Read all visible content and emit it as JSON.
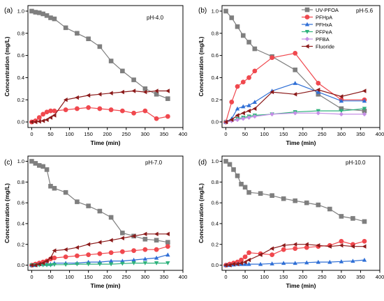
{
  "figure": {
    "legend_series": [
      "UV-PFOA",
      "PFHpA",
      "PFHxA",
      "PFPeA",
      "PFBA",
      "Fluoride"
    ]
  },
  "series_styles": {
    "UV-PFOA": {
      "color": "#7f7f7f",
      "marker": "square"
    },
    "PFHpA": {
      "color": "#f0484e",
      "marker": "circle"
    },
    "PFHxA": {
      "color": "#2f6fd6",
      "marker": "triangle-up"
    },
    "PFPeA": {
      "color": "#2fb27c",
      "marker": "triangle-down"
    },
    "PFBA": {
      "color": "#c58fe6",
      "marker": "diamond"
    },
    "Fluoride": {
      "color": "#8b1a1a",
      "marker": "triangle-left"
    }
  },
  "chart_data": [
    {
      "type": "line",
      "panel_label": "(a)",
      "annotation": "pH-4.0",
      "xlabel": "Time (min)",
      "ylabel": "Concentration (mg/L)",
      "xlim": [
        -10,
        400
      ],
      "ylim": [
        -0.05,
        1.05
      ],
      "xticks": [
        0,
        50,
        100,
        150,
        200,
        250,
        300,
        350,
        400
      ],
      "yticks": [
        0.0,
        0.2,
        0.4,
        0.6,
        0.8,
        1.0
      ],
      "yticklabels": [
        "0.0",
        "0.2",
        "0.4",
        "0.6",
        "0.8",
        "1.0"
      ],
      "legend": false,
      "series": [
        {
          "name": "UV-PFOA",
          "x": [
            0,
            10,
            20,
            30,
            40,
            50,
            60,
            90,
            120,
            150,
            180,
            210,
            240,
            270,
            300,
            330,
            360
          ],
          "y": [
            1.0,
            0.99,
            0.985,
            0.975,
            0.96,
            0.94,
            0.93,
            0.85,
            0.8,
            0.75,
            0.68,
            0.55,
            0.46,
            0.38,
            0.3,
            0.25,
            0.21
          ]
        },
        {
          "name": "PFHpA",
          "x": [
            0,
            10,
            20,
            30,
            40,
            50,
            60,
            90,
            120,
            150,
            180,
            210,
            240,
            270,
            300,
            330,
            360
          ],
          "y": [
            0.0,
            0.01,
            0.04,
            0.07,
            0.09,
            0.1,
            0.1,
            0.11,
            0.12,
            0.13,
            0.12,
            0.11,
            0.1,
            0.08,
            0.1,
            0.03,
            0.05
          ]
        },
        {
          "name": "Fluoride",
          "x": [
            0,
            10,
            20,
            30,
            40,
            50,
            60,
            90,
            120,
            150,
            180,
            210,
            240,
            270,
            300,
            330,
            360
          ],
          "y": [
            0.0,
            0.0,
            0.005,
            0.01,
            0.02,
            0.04,
            0.06,
            0.2,
            0.22,
            0.24,
            0.25,
            0.26,
            0.27,
            0.28,
            0.27,
            0.28,
            0.28
          ]
        }
      ]
    },
    {
      "type": "line",
      "panel_label": "(b)",
      "annotation": "pH-5.6",
      "xlabel": "Time (min)",
      "ylabel": "Concentration (mg/L)",
      "xlim": [
        -10,
        400
      ],
      "ylim": [
        -0.05,
        1.05
      ],
      "xticks": [
        0,
        50,
        100,
        150,
        200,
        250,
        300,
        350,
        400
      ],
      "yticks": [
        0.0,
        0.2,
        0.4,
        0.6,
        0.8,
        1.0
      ],
      "yticklabels": [
        "0.0",
        "0.2",
        "0.4",
        "0.6",
        "0.8",
        "1.0"
      ],
      "legend": true,
      "series": [
        {
          "name": "UV-PFOA",
          "x": [
            0,
            15,
            30,
            45,
            60,
            75,
            120,
            180,
            240,
            300,
            360
          ],
          "y": [
            1.0,
            0.94,
            0.86,
            0.78,
            0.72,
            0.66,
            0.59,
            0.47,
            0.25,
            0.12,
            0.1
          ]
        },
        {
          "name": "PFHpA",
          "x": [
            0,
            15,
            30,
            45,
            60,
            75,
            120,
            180,
            240,
            300,
            360
          ],
          "y": [
            0.0,
            0.18,
            0.32,
            0.36,
            0.4,
            0.46,
            0.58,
            0.62,
            0.35,
            0.2,
            0.2
          ]
        },
        {
          "name": "PFHxA",
          "x": [
            0,
            15,
            30,
            45,
            60,
            75,
            120,
            180,
            240,
            300,
            360
          ],
          "y": [
            0.0,
            0.03,
            0.12,
            0.14,
            0.15,
            0.18,
            0.28,
            0.35,
            0.27,
            0.19,
            0.19
          ]
        },
        {
          "name": "PFPeA",
          "x": [
            0,
            15,
            30,
            45,
            60,
            75,
            120,
            180,
            240,
            300,
            360
          ],
          "y": [
            0.0,
            0.01,
            0.03,
            0.04,
            0.05,
            0.06,
            0.07,
            0.09,
            0.1,
            0.1,
            0.12
          ]
        },
        {
          "name": "PFBA",
          "x": [
            0,
            15,
            30,
            45,
            60,
            75,
            120,
            180,
            240,
            300,
            360
          ],
          "y": [
            0.0,
            0.01,
            0.02,
            0.03,
            0.04,
            0.05,
            0.07,
            0.08,
            0.08,
            0.07,
            0.07
          ]
        },
        {
          "name": "Fluoride",
          "x": [
            0,
            15,
            30,
            45,
            60,
            75,
            120,
            180,
            240,
            300,
            360
          ],
          "y": [
            0.0,
            0.02,
            0.06,
            0.08,
            0.1,
            0.12,
            0.27,
            0.25,
            0.29,
            0.23,
            0.28
          ]
        }
      ]
    },
    {
      "type": "line",
      "panel_label": "(c)",
      "annotation": "pH-7.0",
      "xlabel": "Time (min)",
      "ylabel": "Concentration (mg/L)",
      "xlim": [
        -10,
        400
      ],
      "ylim": [
        -0.05,
        1.05
      ],
      "xticks": [
        0,
        50,
        100,
        150,
        200,
        250,
        300,
        350,
        400
      ],
      "yticks": [
        0.0,
        0.2,
        0.4,
        0.6,
        0.8,
        1.0
      ],
      "yticklabels": [
        "0.0",
        "0.2",
        "0.4",
        "0.6",
        "0.8",
        "1.0"
      ],
      "legend": false,
      "series": [
        {
          "name": "UV-PFOA",
          "x": [
            0,
            10,
            20,
            30,
            40,
            50,
            60,
            90,
            120,
            150,
            180,
            210,
            240,
            270,
            300,
            330,
            360
          ],
          "y": [
            1.0,
            0.98,
            0.96,
            0.95,
            0.92,
            0.76,
            0.74,
            0.7,
            0.61,
            0.57,
            0.52,
            0.46,
            0.31,
            0.28,
            0.25,
            0.24,
            0.22
          ]
        },
        {
          "name": "PFHpA",
          "x": [
            0,
            10,
            20,
            30,
            40,
            50,
            60,
            90,
            120,
            150,
            180,
            210,
            240,
            270,
            300,
            330,
            360
          ],
          "y": [
            0.0,
            0.01,
            0.02,
            0.03,
            0.04,
            0.06,
            0.07,
            0.08,
            0.09,
            0.1,
            0.11,
            0.12,
            0.13,
            0.14,
            0.15,
            0.15,
            0.18
          ]
        },
        {
          "name": "PFHxA",
          "x": [
            0,
            10,
            20,
            30,
            40,
            50,
            60,
            90,
            120,
            150,
            180,
            210,
            240,
            270,
            300,
            330,
            360
          ],
          "y": [
            0.0,
            0.0,
            0.01,
            0.01,
            0.01,
            0.01,
            0.02,
            0.02,
            0.02,
            0.03,
            0.03,
            0.04,
            0.04,
            0.05,
            0.06,
            0.07,
            0.1
          ]
        },
        {
          "name": "PFPeA",
          "x": [
            0,
            10,
            20,
            30,
            40,
            50,
            60,
            90,
            120,
            150,
            180,
            210,
            240,
            270,
            300,
            330,
            360
          ],
          "y": [
            0.0,
            0.0,
            0.0,
            0.0,
            0.0,
            0.0,
            0.005,
            0.005,
            0.01,
            0.01,
            0.01,
            0.01,
            0.015,
            0.02,
            0.02,
            0.02,
            0.02
          ]
        },
        {
          "name": "Fluoride",
          "x": [
            0,
            10,
            20,
            30,
            40,
            50,
            60,
            90,
            120,
            150,
            180,
            210,
            240,
            270,
            300,
            330,
            360
          ],
          "y": [
            0.0,
            0.0,
            0.01,
            0.02,
            0.04,
            0.07,
            0.14,
            0.15,
            0.17,
            0.2,
            0.22,
            0.24,
            0.26,
            0.28,
            0.3,
            0.3,
            0.3
          ]
        }
      ]
    },
    {
      "type": "line",
      "panel_label": "(d)",
      "annotation": "pH-10.0",
      "xlabel": "Time (min)",
      "ylabel": "Concentration (mg/L)",
      "xlim": [
        -10,
        400
      ],
      "ylim": [
        -0.05,
        1.05
      ],
      "xticks": [
        0,
        50,
        100,
        150,
        200,
        250,
        300,
        350,
        400
      ],
      "yticks": [
        0.0,
        0.2,
        0.4,
        0.6,
        0.8,
        1.0
      ],
      "yticklabels": [
        "0.0",
        "0.2",
        "0.4",
        "0.6",
        "0.8",
        "1.0"
      ],
      "legend": false,
      "series": [
        {
          "name": "UV-PFOA",
          "x": [
            0,
            10,
            20,
            30,
            40,
            50,
            60,
            90,
            120,
            150,
            180,
            210,
            240,
            270,
            300,
            330,
            360
          ],
          "y": [
            1.0,
            0.97,
            0.92,
            0.86,
            0.78,
            0.75,
            0.7,
            0.69,
            0.67,
            0.64,
            0.62,
            0.6,
            0.58,
            0.54,
            0.47,
            0.45,
            0.42
          ]
        },
        {
          "name": "PFHpA",
          "x": [
            0,
            10,
            20,
            30,
            40,
            50,
            60,
            90,
            120,
            150,
            180,
            210,
            240,
            270,
            300,
            330,
            360
          ],
          "y": [
            0.0,
            0.01,
            0.02,
            0.03,
            0.05,
            0.08,
            0.12,
            0.11,
            0.1,
            0.15,
            0.16,
            0.17,
            0.18,
            0.19,
            0.23,
            0.2,
            0.23
          ]
        },
        {
          "name": "PFHxA",
          "x": [
            0,
            10,
            20,
            30,
            40,
            50,
            60,
            90,
            120,
            150,
            180,
            210,
            240,
            270,
            300,
            330,
            360
          ],
          "y": [
            0.0,
            0.0,
            0.005,
            0.01,
            0.01,
            0.01,
            0.01,
            0.01,
            0.015,
            0.02,
            0.02,
            0.025,
            0.03,
            0.03,
            0.035,
            0.04,
            0.05
          ]
        },
        {
          "name": "Fluoride",
          "x": [
            0,
            10,
            20,
            30,
            40,
            50,
            60,
            90,
            120,
            150,
            180,
            210,
            240,
            270,
            300,
            330,
            360
          ],
          "y": [
            0.0,
            0.0,
            0.01,
            0.01,
            0.02,
            0.03,
            0.05,
            0.1,
            0.16,
            0.19,
            0.2,
            0.2,
            0.19,
            0.18,
            0.19,
            0.18,
            0.18
          ]
        }
      ]
    }
  ]
}
